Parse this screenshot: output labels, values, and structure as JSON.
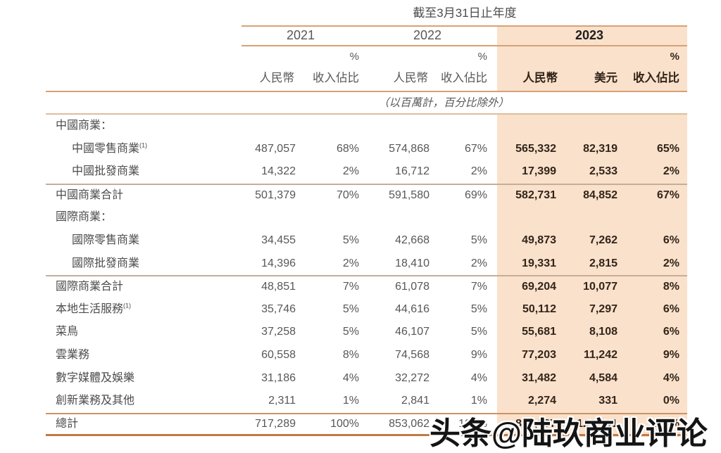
{
  "page": {
    "title": "截至3月31日止年度",
    "unit_note": "（以百萬計，百分比除外）",
    "watermark": "头条@陆玖商业评论"
  },
  "colors": {
    "highlight_bg": "#f9e1cb",
    "rule_orange": "#d8a175",
    "rule_thin": "#c6ad97",
    "rule_total_top": "#cf9263",
    "rule_total_bottom": "#c07a45",
    "text_grey": "#575757",
    "text_bold": "#33241a"
  },
  "table": {
    "years": [
      "2021",
      "2022",
      "2023"
    ],
    "pct": "%",
    "col_rmb": "人民幣",
    "col_usd": "美元",
    "col_share": "收入佔比",
    "rows": [
      {
        "type": "section",
        "label": "中國商業："
      },
      {
        "type": "item",
        "indent": true,
        "label": "中國零售商業",
        "sup": "(1)",
        "c": [
          "487,057",
          "68%",
          "574,868",
          "67%",
          "565,332",
          "82,319",
          "65%"
        ]
      },
      {
        "type": "item",
        "indent": true,
        "label": "中國批發商業",
        "c": [
          "14,322",
          "2%",
          "16,712",
          "2%",
          "17,399",
          "2,533",
          "2%"
        ]
      },
      {
        "type": "subtotal",
        "label": "中國商業合計",
        "c": [
          "501,379",
          "70%",
          "591,580",
          "69%",
          "582,731",
          "84,852",
          "67%"
        ]
      },
      {
        "type": "section",
        "label": "國際商業："
      },
      {
        "type": "item",
        "indent": true,
        "label": "國際零售商業",
        "c": [
          "34,455",
          "5%",
          "42,668",
          "5%",
          "49,873",
          "7,262",
          "6%"
        ]
      },
      {
        "type": "item",
        "indent": true,
        "label": "國際批發商業",
        "c": [
          "14,396",
          "2%",
          "18,410",
          "2%",
          "19,331",
          "2,815",
          "2%"
        ]
      },
      {
        "type": "subtotal",
        "label": "國際商業合計",
        "c": [
          "48,851",
          "7%",
          "61,078",
          "7%",
          "69,204",
          "10,077",
          "8%"
        ]
      },
      {
        "type": "item",
        "label": "本地生活服務",
        "sup": "(1)",
        "c": [
          "35,746",
          "5%",
          "44,616",
          "5%",
          "50,112",
          "7,297",
          "6%"
        ]
      },
      {
        "type": "item",
        "label": "菜鳥",
        "c": [
          "37,258",
          "5%",
          "46,107",
          "5%",
          "55,681",
          "8,108",
          "6%"
        ]
      },
      {
        "type": "item",
        "label": "雲業務",
        "c": [
          "60,558",
          "8%",
          "74,568",
          "9%",
          "77,203",
          "11,242",
          "9%"
        ]
      },
      {
        "type": "item",
        "label": "數字媒體及娛樂",
        "c": [
          "31,186",
          "4%",
          "32,272",
          "4%",
          "31,482",
          "4,584",
          "4%"
        ]
      },
      {
        "type": "item",
        "label": "創新業務及其他",
        "c": [
          "2,311",
          "1%",
          "2,841",
          "1%",
          "2,274",
          "331",
          "0%"
        ]
      },
      {
        "type": "total",
        "label": "總計",
        "c": [
          "717,289",
          "100%",
          "853,062",
          "100%",
          "868,687",
          "126,491",
          "100%"
        ]
      }
    ]
  }
}
